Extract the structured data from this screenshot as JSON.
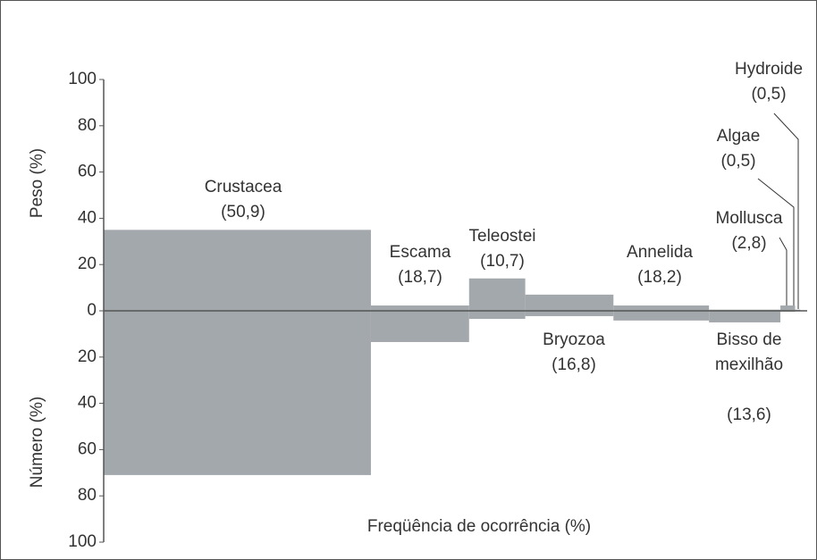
{
  "chart_data": {
    "type": "costello",
    "xlabel": "Freqüência de ocorrência (%)",
    "ylabel": "Peso (%)",
    "y2label": "Número (%)",
    "categories": [
      "Crustacea",
      "Escama",
      "Teleostei",
      "Bryozoa",
      "Annelida",
      "Bisso de mexilhão",
      "Mollusca",
      "Algae",
      "Hydroide"
    ],
    "frequency": [
      50.9,
      18.7,
      10.7,
      16.8,
      18.2,
      13.6,
      2.8,
      0.5,
      0.5
    ],
    "frequency_labels": [
      "(50,9)",
      "(18,7)",
      "(10,7)",
      "(16,8)",
      "(18,2)",
      "(13,6)",
      "(2,8)",
      "(0,5)",
      "(0,5)"
    ],
    "weight": [
      35,
      2.3,
      14,
      7,
      2.3,
      0.5,
      2.3,
      0.5,
      0.5
    ],
    "number": [
      71,
      13.5,
      3.5,
      2.3,
      4.2,
      5,
      0.4,
      0.2,
      0.2
    ],
    "color": "#a3a8ad",
    "xlim": [
      0,
      134
    ],
    "ylim": [
      0,
      100
    ],
    "yticks": [
      0,
      20,
      40,
      60,
      80,
      100
    ],
    "y2lim": [
      0,
      100
    ],
    "y2ticks": [
      20,
      40,
      60,
      80,
      100
    ]
  }
}
